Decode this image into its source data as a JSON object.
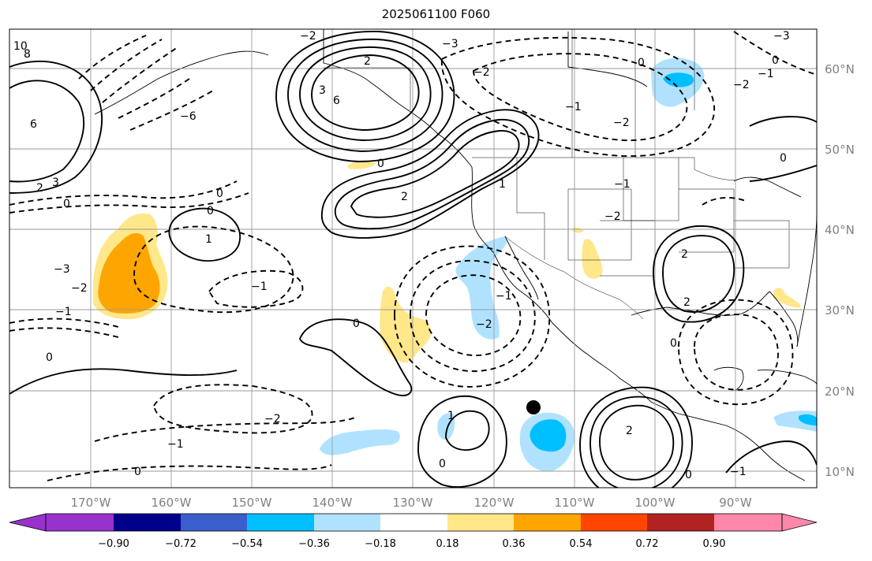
{
  "title": "2025061100 F060",
  "map": {
    "projection": "PlateCarree",
    "lon_range": [
      "-177",
      "-78"
    ],
    "lat_range": [
      "8",
      "65"
    ],
    "lon_ticks": [
      "170°W",
      "160°W",
      "150°W",
      "140°W",
      "130°W",
      "120°W",
      "110°W",
      "100°W",
      "90°W"
    ],
    "lat_ticks": [
      "60°N",
      "50°N",
      "40°N",
      "30°N",
      "20°N",
      "10°N"
    ],
    "gridlines": true,
    "marker": {
      "lon": "-115",
      "lat": "18",
      "color": "#000000"
    }
  },
  "colorbar": {
    "orientation": "horizontal",
    "extend": "both",
    "colors": [
      "#9932cc",
      "#00008b",
      "#3a5fcd",
      "#00bfff",
      "#b0e2ff",
      "#ffffff",
      "#ffe78a",
      "#ffa500",
      "#ff4500",
      "#b22222",
      "#ff88aa"
    ],
    "tick_labels": [
      "−0.90",
      "−0.72",
      "−0.54",
      "−0.36",
      "−0.18",
      "0.18",
      "0.36",
      "0.54",
      "0.72",
      "0.90"
    ]
  },
  "contour_labels": [
    "0",
    "1",
    "2",
    "3",
    "6",
    "10",
    "8",
    "−1",
    "−2",
    "−3",
    "−6"
  ]
}
